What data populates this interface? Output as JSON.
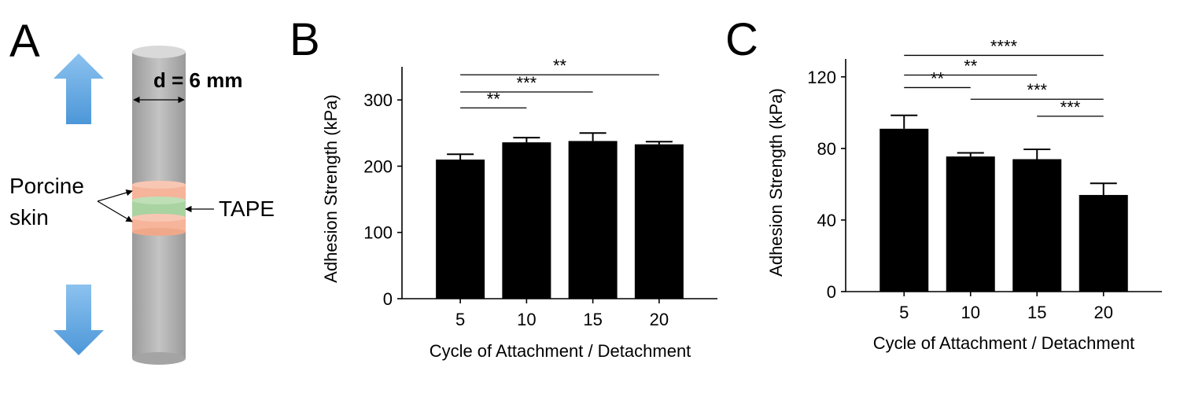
{
  "panels": {
    "a": {
      "letter": "A"
    },
    "b": {
      "letter": "B"
    },
    "c": {
      "letter": "C"
    }
  },
  "schematic": {
    "diameter_label": "d = 6 mm",
    "porcine_label_1": "Porcine",
    "porcine_label_2": "skin",
    "tape_label": "TAPE",
    "colors": {
      "arrow": "#5aa4df",
      "rod": "#b5b5b5",
      "skin": "#f6b49a",
      "tape": "#a9d3a0"
    }
  },
  "chart_data": [
    {
      "panel": "B",
      "type": "bar",
      "categories": [
        "5",
        "10",
        "15",
        "20"
      ],
      "values": [
        210,
        236,
        238,
        233
      ],
      "errors": [
        8,
        7,
        12,
        4
      ],
      "xlabel": "Cycle of Attachment / Detachment",
      "ylabel": "Adhesion Strength (kPa)",
      "ylim": [
        0,
        350
      ],
      "yticks": [
        0,
        100,
        200,
        300
      ],
      "bar_color": "#000000",
      "significance": [
        {
          "from": 0,
          "to": 1,
          "label": "**",
          "level": 288
        },
        {
          "from": 0,
          "to": 2,
          "label": "***",
          "level": 312
        },
        {
          "from": 0,
          "to": 3,
          "label": "**",
          "level": 338
        }
      ]
    },
    {
      "panel": "C",
      "type": "bar",
      "categories": [
        "5",
        "10",
        "15",
        "20"
      ],
      "values": [
        91,
        75.5,
        74,
        54
      ],
      "errors": [
        7.5,
        2,
        5.5,
        6.5
      ],
      "xlabel": "Cycle of Attachment / Detachment",
      "ylabel": "Adhesion Strength (kPa)",
      "ylim": [
        0,
        130
      ],
      "yticks": [
        0,
        40,
        80,
        120
      ],
      "bar_color": "#000000",
      "significance": [
        {
          "from": 0,
          "to": 1,
          "label": "**",
          "level": 114
        },
        {
          "from": 0,
          "to": 2,
          "label": "**",
          "level": 121
        },
        {
          "from": 0,
          "to": 3,
          "label": "****",
          "level": 132
        },
        {
          "from": 1,
          "to": 3,
          "label": "***",
          "level": 107.5
        },
        {
          "from": 2,
          "to": 3,
          "label": "***",
          "level": 98
        }
      ]
    }
  ]
}
